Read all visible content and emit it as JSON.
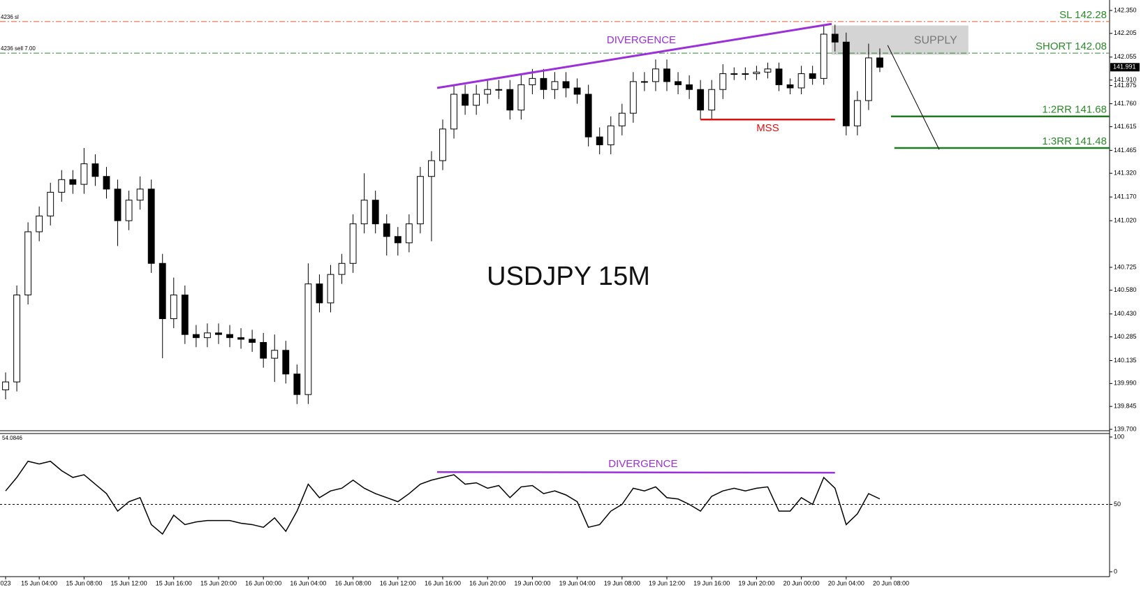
{
  "chart_data": {
    "type": "candlestick",
    "title": "USDJPY 15M",
    "categories": [
      "023",
      null,
      null,
      "15 Jun 04:00",
      null,
      null,
      null,
      "15 Jun 08:00",
      null,
      null,
      null,
      "15 Jun 12:00",
      null,
      null,
      null,
      "15 Jun 16:00",
      null,
      null,
      null,
      "15 Jun 20:00",
      null,
      null,
      null,
      "16 Jun 00:00",
      null,
      null,
      null,
      "16 Jun 04:00",
      null,
      null,
      null,
      "16 Jun 08:00",
      null,
      null,
      null,
      "16 Jun 12:00",
      null,
      null,
      null,
      "16 Jun 16:00",
      null,
      null,
      null,
      "16 Jun 20:00",
      null,
      null,
      null,
      "19 Jun 00:00",
      null,
      null,
      null,
      "19 Jun 04:00",
      null,
      null,
      null,
      "19 Jun 08:00",
      null,
      null,
      null,
      "19 Jun 12:00",
      null,
      null,
      null,
      "19 Jun 16:00",
      null,
      null,
      null,
      "19 Jun 20:00",
      null,
      null,
      null,
      "20 Jun 00:00",
      null,
      null,
      null,
      "20 Jun 04:00",
      null,
      null,
      null,
      "20 Jun 08:00"
    ],
    "open": [
      139.95,
      140.0,
      140.55,
      140.95,
      141.05,
      141.2,
      141.28,
      141.25,
      141.38,
      141.3,
      141.22,
      141.02,
      141.15,
      141.22,
      140.75,
      140.4,
      140.55,
      140.3,
      140.28,
      140.31,
      140.3,
      140.28,
      140.27,
      140.25,
      140.15,
      140.2,
      140.05,
      139.92,
      140.62,
      140.5,
      140.68,
      140.75,
      141.0,
      141.15,
      141.0,
      140.92,
      140.88,
      141.0,
      141.3,
      141.4,
      141.6,
      141.82,
      141.75,
      141.82,
      141.85,
      141.85,
      141.72,
      141.88,
      141.92,
      141.85,
      141.9,
      141.86,
      141.82,
      141.55,
      141.5,
      141.62,
      141.7,
      141.9,
      141.9,
      141.98,
      141.9,
      141.88,
      141.85,
      141.72,
      141.85,
      141.95,
      141.95,
      141.95,
      141.96,
      141.98,
      141.88,
      141.86,
      141.95,
      141.92,
      142.2,
      142.15,
      141.62,
      141.78,
      142.05,
      null
    ],
    "high": [
      140.06,
      140.61,
      141.01,
      141.11,
      141.26,
      141.34,
      141.34,
      141.48,
      141.44,
      141.36,
      141.28,
      141.21,
      141.3,
      141.28,
      140.81,
      140.66,
      140.61,
      140.36,
      140.37,
      140.37,
      140.36,
      140.34,
      140.33,
      140.31,
      140.3,
      140.26,
      140.11,
      140.75,
      140.68,
      140.74,
      140.81,
      141.06,
      141.32,
      141.21,
      141.06,
      140.98,
      141.06,
      141.36,
      141.46,
      141.66,
      141.88,
      141.88,
      141.88,
      141.91,
      141.91,
      141.91,
      141.94,
      141.98,
      141.98,
      141.96,
      141.96,
      141.92,
      141.88,
      141.61,
      141.68,
      141.76,
      141.96,
      141.96,
      142.04,
      142.04,
      141.96,
      141.94,
      141.91,
      141.91,
      142.01,
      141.99,
      141.99,
      142.0,
      142.02,
      142.02,
      141.92,
      142.0,
      142.0,
      142.26,
      142.26,
      142.21,
      141.84,
      142.14,
      142.11,
      null
    ],
    "low": [
      139.89,
      139.94,
      140.49,
      140.89,
      140.99,
      141.14,
      141.19,
      141.19,
      141.24,
      141.16,
      140.86,
      140.96,
      141.09,
      140.69,
      140.15,
      140.34,
      140.24,
      140.22,
      140.22,
      140.24,
      140.22,
      140.21,
      140.19,
      140.09,
      140.0,
      139.99,
      139.86,
      139.86,
      140.44,
      140.44,
      140.62,
      140.69,
      140.94,
      140.94,
      140.8,
      140.8,
      140.82,
      140.94,
      140.89,
      141.34,
      141.54,
      141.69,
      141.69,
      141.76,
      141.79,
      141.66,
      141.66,
      141.82,
      141.79,
      141.79,
      141.8,
      141.76,
      141.49,
      141.44,
      141.44,
      141.56,
      141.64,
      141.84,
      141.84,
      141.84,
      141.82,
      141.79,
      141.66,
      141.66,
      141.79,
      141.91,
      141.91,
      141.91,
      141.92,
      141.84,
      141.82,
      141.82,
      141.88,
      141.88,
      142.09,
      141.56,
      141.56,
      141.72,
      141.96,
      null
    ],
    "close": [
      140.0,
      140.55,
      140.95,
      141.05,
      141.2,
      141.28,
      141.25,
      141.38,
      141.3,
      141.22,
      141.02,
      141.15,
      141.22,
      140.75,
      140.4,
      140.55,
      140.3,
      140.28,
      140.31,
      140.3,
      140.28,
      140.27,
      140.25,
      140.15,
      140.2,
      140.05,
      139.92,
      140.62,
      140.5,
      140.68,
      140.75,
      141.0,
      141.15,
      141.0,
      140.92,
      140.88,
      141.0,
      141.3,
      141.4,
      141.6,
      141.82,
      141.75,
      141.82,
      141.85,
      141.85,
      141.72,
      141.88,
      141.92,
      141.85,
      141.9,
      141.86,
      141.82,
      141.55,
      141.5,
      141.62,
      141.7,
      141.9,
      141.9,
      141.98,
      141.9,
      141.88,
      141.85,
      141.72,
      141.85,
      141.95,
      141.95,
      141.95,
      141.96,
      141.98,
      141.88,
      141.86,
      141.95,
      141.92,
      142.2,
      142.15,
      141.62,
      141.78,
      142.05,
      141.991,
      null
    ],
    "xlim": [
      -0.5,
      98.5
    ],
    "ylim": [
      139.7,
      142.35
    ],
    "yticks": [
      {
        "value": 142.35,
        "label": "142.350"
      },
      142.205,
      142.055,
      {
        "value": 141.91,
        "label": "141.910"
      },
      {
        "value": 141.76,
        "label": "141.760"
      },
      141.615,
      141.465,
      {
        "value": 141.32,
        "label": "141.320"
      },
      {
        "value": 141.17,
        "label": "141.170"
      },
      {
        "value": 141.02,
        "label": "141.020"
      },
      141.875,
      {
        "value": 140.725,
        "label": "140.725"
      },
      {
        "value": 140.58,
        "label": "140.580"
      },
      {
        "value": 140.43,
        "label": "140.430"
      },
      140.285,
      140.135,
      {
        "value": 139.99,
        "label": "139.990"
      },
      139.845,
      {
        "value": 139.7,
        "label": "139.700"
      }
    ],
    "current_price": 141.991,
    "levels": [
      {
        "label": "SL 142.28",
        "value": 142.28,
        "color": "#e8542a",
        "text_color": "#2a8a2a",
        "tag": "4236 sl"
      },
      {
        "label": "SHORT 142.08",
        "value": 142.08,
        "color": "#2a8a2a",
        "text_color": "#2a8a2a",
        "tag": "4236 sell 7.00"
      },
      {
        "label": "1:2RR 141.68",
        "value": 141.68,
        "color": "#1f7a1f",
        "text_color": "#2a8a2a",
        "x": 79
      },
      {
        "label": "1:3RR 141.48",
        "value": 141.48,
        "color": "#1f7a1f",
        "text_color": "#2a8a2a",
        "x": 79.3
      }
    ],
    "supply": {
      "label": "SUPPLY",
      "x": [
        73.7,
        85.9
      ],
      "y": [
        142.07,
        142.255
      ],
      "color": "#cccccc"
    },
    "divergence": {
      "label": "DIVERGENCE",
      "x": [
        38.5,
        73.7
      ],
      "y": [
        141.86,
        142.265
      ],
      "color": "#9b30d9"
    },
    "mss": {
      "label": "MSS",
      "x": [
        62,
        74
      ],
      "value": 141.66,
      "color": "#e01010"
    },
    "arrow": {
      "x": [
        78.7,
        83.3
      ],
      "y": [
        142.13,
        141.47
      ]
    },
    "indicator": {
      "type": "line",
      "label": "54.0846",
      "values": [
        60,
        70,
        82,
        80,
        82,
        75,
        70,
        72,
        65,
        58,
        45,
        52,
        55,
        35,
        28,
        42,
        35,
        37,
        38,
        38,
        38,
        36,
        35,
        33,
        40,
        30,
        45,
        65,
        55,
        60,
        62,
        68,
        62,
        58,
        55,
        52,
        58,
        65,
        68,
        70,
        72,
        65,
        66,
        62,
        64,
        55,
        63,
        64,
        58,
        60,
        57,
        52,
        33,
        35,
        45,
        50,
        62,
        60,
        63,
        55,
        54,
        50,
        45,
        56,
        60,
        62,
        60,
        62,
        63,
        45,
        45,
        55,
        50,
        70,
        62,
        35,
        43,
        58,
        54.0846,
        null
      ],
      "ylim": [
        0,
        100
      ],
      "yticks": [
        0,
        50,
        100
      ],
      "level": 50,
      "divergence": {
        "label": "DIVERGENCE",
        "x": [
          38.5,
          74
        ],
        "y": [
          74,
          73.5
        ],
        "color": "#9b30d9"
      }
    }
  }
}
